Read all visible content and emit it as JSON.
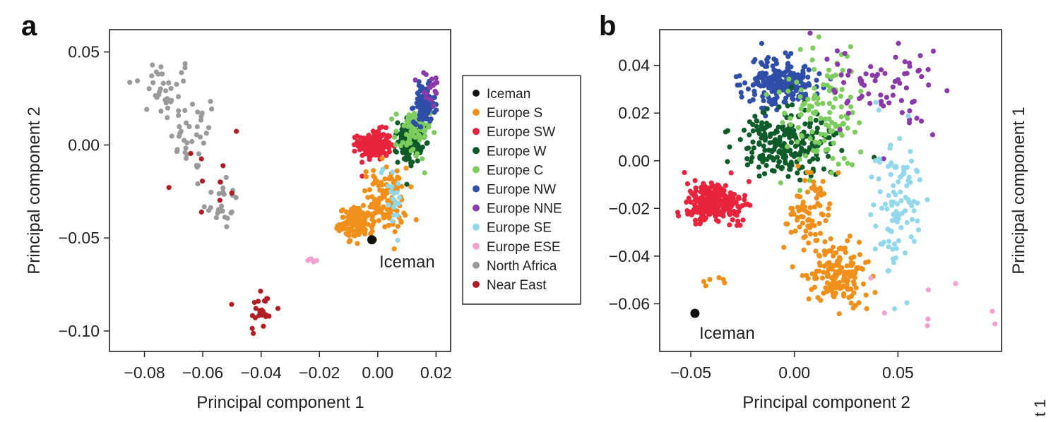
{
  "colors": {
    "Iceman": "#111111",
    "Europe S": "#f0901a",
    "Europe SW": "#e8243c",
    "Europe W": "#0e5b2a",
    "Europe C": "#7ccc5e",
    "Europe NW": "#2f4ea8",
    "Europe NNE": "#8a3aa8",
    "Europe SE": "#92d7ea",
    "Europe ESE": "#f3a1cf",
    "North Africa": "#9a9a9a",
    "Near East": "#b01e24"
  },
  "legend": {
    "entries": [
      "Iceman",
      "Europe S",
      "Europe SW",
      "Europe W",
      "Europe C",
      "Europe NW",
      "Europe NNE",
      "Europe SE",
      "Europe ESE",
      "North Africa",
      "Near East"
    ]
  },
  "right_edge_clipped_label": "t 1",
  "chart_data": [
    {
      "type": "scatter",
      "panel": "a",
      "xlabel": "Principal component 1",
      "ylabel": "Principal component 2",
      "xlim": [
        -0.092,
        0.025
      ],
      "ylim": [
        -0.111,
        0.062
      ],
      "xticks": [
        -0.08,
        -0.06,
        -0.04,
        -0.02,
        0.0,
        0.02
      ],
      "xtick_labels": [
        "−0.08",
        "−0.06",
        "−0.04",
        "−0.02",
        "0.00",
        "0.02"
      ],
      "yticks": [
        0.05,
        0.0,
        -0.05,
        -0.1
      ],
      "ytick_labels": [
        "0.05",
        "0.00",
        "−0.05",
        "−0.10"
      ],
      "grid": false,
      "legend_position": "outside-right",
      "annotations": [
        {
          "text": "Iceman",
          "x": -0.002,
          "y": -0.051
        }
      ],
      "iceman": {
        "x": -0.002,
        "y": -0.051
      },
      "clusters": [
        {
          "group": "North Africa",
          "cx": -0.074,
          "cy": 0.03,
          "sx": 0.006,
          "sy": 0.009,
          "n": 35
        },
        {
          "group": "North Africa",
          "cx": -0.063,
          "cy": 0.005,
          "sx": 0.004,
          "sy": 0.01,
          "n": 35
        },
        {
          "group": "North Africa",
          "cx": -0.054,
          "cy": -0.03,
          "sx": 0.003,
          "sy": 0.008,
          "n": 25
        },
        {
          "group": "Near East",
          "cx": -0.04,
          "cy": -0.089,
          "sx": 0.0025,
          "sy": 0.007,
          "n": 24
        },
        {
          "group": "Near East",
          "cx": -0.06,
          "cy": -0.02,
          "sx": 0.008,
          "sy": 0.02,
          "n": 10
        },
        {
          "group": "Europe SW",
          "cx": -0.001,
          "cy": 0.0,
          "sx": 0.0028,
          "sy": 0.004,
          "n": 170
        },
        {
          "group": "Europe S",
          "cx": 0.002,
          "cy": -0.03,
          "sx": 0.004,
          "sy": 0.009,
          "n": 120
        },
        {
          "group": "Europe S",
          "cx": -0.007,
          "cy": -0.042,
          "sx": 0.003,
          "sy": 0.004,
          "n": 120
        },
        {
          "group": "Europe W",
          "cx": 0.011,
          "cy": 0.002,
          "sx": 0.002,
          "sy": 0.006,
          "n": 110
        },
        {
          "group": "Europe C",
          "cx": 0.012,
          "cy": 0.006,
          "sx": 0.003,
          "sy": 0.007,
          "n": 60
        },
        {
          "group": "Europe NW",
          "cx": 0.016,
          "cy": 0.022,
          "sx": 0.0018,
          "sy": 0.005,
          "n": 110
        },
        {
          "group": "Europe NNE",
          "cx": 0.018,
          "cy": 0.03,
          "sx": 0.002,
          "sy": 0.005,
          "n": 20
        },
        {
          "group": "Europe SE",
          "cx": 0.005,
          "cy": -0.025,
          "sx": 0.002,
          "sy": 0.01,
          "n": 20
        },
        {
          "group": "Europe ESE",
          "cx": -0.023,
          "cy": -0.062,
          "sx": 0.0012,
          "sy": 0.0015,
          "n": 5
        }
      ]
    },
    {
      "type": "scatter",
      "panel": "b",
      "xlabel": "Principal component 2",
      "ylabel": "Principal component 1",
      "xlim": [
        -0.065,
        0.1
      ],
      "ylim": [
        -0.08,
        0.055
      ],
      "xticks": [
        -0.05,
        0.0,
        0.05
      ],
      "xtick_labels": [
        "−0.05",
        "0.00",
        "0.05"
      ],
      "yticks": [
        0.04,
        0.02,
        0.0,
        -0.02,
        -0.04,
        -0.06
      ],
      "ytick_labels": [
        "0.04",
        "0.02",
        "0.00",
        "−0.02",
        "−0.04",
        "−0.06"
      ],
      "grid": false,
      "annotations": [
        {
          "text": "Iceman",
          "x": -0.048,
          "y": -0.064
        }
      ],
      "iceman": {
        "x": -0.048,
        "y": -0.064
      },
      "clusters": [
        {
          "group": "Europe NW",
          "cx": -0.007,
          "cy": 0.033,
          "sx": 0.009,
          "sy": 0.005,
          "n": 210
        },
        {
          "group": "Europe W",
          "cx": -0.003,
          "cy": 0.007,
          "sx": 0.011,
          "sy": 0.007,
          "n": 230
        },
        {
          "group": "Europe C",
          "cx": 0.013,
          "cy": 0.02,
          "sx": 0.01,
          "sy": 0.012,
          "n": 120
        },
        {
          "group": "Europe NNE",
          "cx": 0.045,
          "cy": 0.03,
          "sx": 0.015,
          "sy": 0.01,
          "n": 70
        },
        {
          "group": "Europe SE",
          "cx": 0.049,
          "cy": -0.017,
          "sx": 0.006,
          "sy": 0.016,
          "n": 100
        },
        {
          "group": "Europe SW",
          "cx": -0.038,
          "cy": -0.017,
          "sx": 0.007,
          "sy": 0.004,
          "n": 260
        },
        {
          "group": "Europe S",
          "cx": 0.022,
          "cy": -0.048,
          "sx": 0.007,
          "sy": 0.007,
          "n": 150
        },
        {
          "group": "Europe S",
          "cx": 0.007,
          "cy": -0.022,
          "sx": 0.006,
          "sy": 0.008,
          "n": 80
        },
        {
          "group": "Europe S",
          "cx": -0.04,
          "cy": -0.05,
          "sx": 0.007,
          "sy": 0.002,
          "n": 6
        },
        {
          "group": "Europe ESE",
          "cx": 0.065,
          "cy": -0.06,
          "sx": 0.018,
          "sy": 0.01,
          "n": 8
        }
      ]
    }
  ]
}
